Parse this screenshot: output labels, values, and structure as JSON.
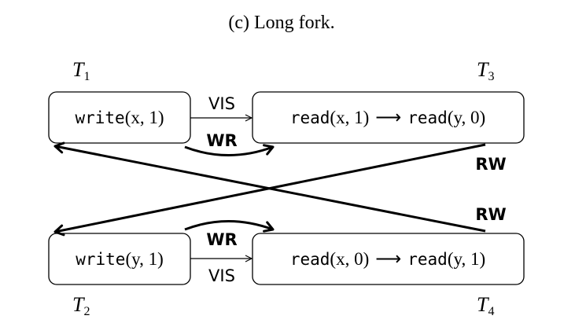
{
  "caption": "(c) Long fork.",
  "transactions": {
    "t1": {
      "letter": "T",
      "sub": "1"
    },
    "t2": {
      "letter": "T",
      "sub": "2"
    },
    "t3": {
      "letter": "T",
      "sub": "3"
    },
    "t4": {
      "letter": "T",
      "sub": "4"
    }
  },
  "nodes": {
    "t1": {
      "op1": "write",
      "args1": "(x, 1)"
    },
    "t2": {
      "op1": "write",
      "args1": "(y, 1)"
    },
    "t3": {
      "op1": "read",
      "args1": "(x, 1)",
      "arrow": "⟶",
      "op2": "read",
      "args2": "(y, 0)"
    },
    "t4": {
      "op1": "read",
      "args1": "(x, 0)",
      "arrow": "⟶",
      "op2": "read",
      "args2": "(y, 1)"
    }
  },
  "edges": {
    "vis_top": "VIS",
    "wr_top": "WR",
    "rw_from_t3": "RW",
    "rw_from_t4": "RW",
    "wr_bottom": "WR",
    "vis_bottom": "VIS"
  }
}
